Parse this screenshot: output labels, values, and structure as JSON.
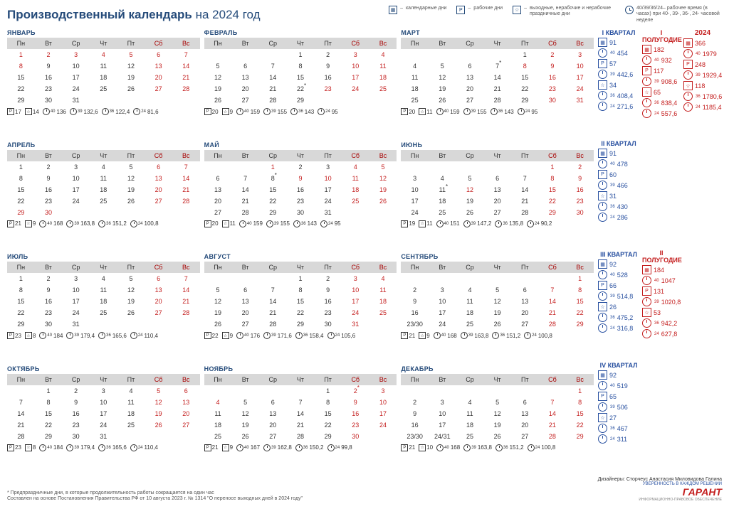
{
  "title": "Производственный календарь",
  "yearText": "на 2024 год",
  "legend": {
    "cal": "календарные дни",
    "work": "рабочие дни",
    "hol": "выходные, нерабочие и нерабочие праздничные дни",
    "hours": "рабочее время (в часах) при 40-, 39-, 36-, 24- часовой неделе",
    "hoursPrefix": "40/39/36/24–"
  },
  "dow": [
    "Пн",
    "Вт",
    "Ср",
    "Чт",
    "Пт",
    "Сб",
    "Вс"
  ],
  "months": [
    {
      "name": "ЯНВАРЬ",
      "start": 0,
      "days": 31,
      "hol": [
        1,
        2,
        3,
        4,
        5,
        6,
        7,
        8
      ],
      "pre": [],
      "stats": {
        "p": 17,
        "s": 14,
        "h40": 136,
        "h39": "132,6",
        "h36": "122,4",
        "h24": "81,6"
      }
    },
    {
      "name": "ФЕВРАЛЬ",
      "start": 3,
      "days": 29,
      "hol": [
        23
      ],
      "pre": [
        22
      ],
      "stats": {
        "p": 20,
        "s": 9,
        "h40": 159,
        "h39": 155,
        "h36": 143,
        "h24": 95
      }
    },
    {
      "name": "МАРТ",
      "start": 4,
      "days": 31,
      "hol": [
        8
      ],
      "pre": [
        7
      ],
      "stats": {
        "p": 20,
        "s": 11,
        "h40": 159,
        "h39": 155,
        "h36": 143,
        "h24": 95
      }
    },
    {
      "name": "АПРЕЛЬ",
      "start": 0,
      "days": 30,
      "hol": [
        29,
        30
      ],
      "pre": [],
      "stats": {
        "p": 21,
        "s": 9,
        "h40": 168,
        "h39": "163,8",
        "h36": "151,2",
        "h24": "100,8"
      }
    },
    {
      "name": "МАЙ",
      "start": 2,
      "days": 31,
      "hol": [
        1,
        9,
        10
      ],
      "pre": [
        8
      ],
      "stats": {
        "p": 20,
        "s": 11,
        "h40": 159,
        "h39": 155,
        "h36": 143,
        "h24": 95
      }
    },
    {
      "name": "ИЮНЬ",
      "start": 5,
      "days": 30,
      "hol": [
        12
      ],
      "pre": [
        11
      ],
      "stats": {
        "p": 19,
        "s": 11,
        "h40": 151,
        "h39": "147,2",
        "h36": "135,8",
        "h24": "90,2"
      }
    },
    {
      "name": "ИЮЛЬ",
      "start": 0,
      "days": 31,
      "hol": [],
      "pre": [],
      "stats": {
        "p": 23,
        "s": 8,
        "h40": 184,
        "h39": "179,4",
        "h36": "165,6",
        "h24": "110,4"
      }
    },
    {
      "name": "АВГУСТ",
      "start": 3,
      "days": 31,
      "hol": [],
      "pre": [],
      "stats": {
        "p": 22,
        "s": 9,
        "h40": 176,
        "h39": "171,6",
        "h36": "158,4",
        "h24": "105,6"
      }
    },
    {
      "name": "СЕНТЯБРЬ",
      "start": 6,
      "days": 30,
      "hol": [],
      "pre": [],
      "stats": {
        "p": 21,
        "s": 9,
        "h40": 168,
        "h39": "163,8",
        "h36": "151,2",
        "h24": "100,8"
      }
    },
    {
      "name": "ОКТЯБРЬ",
      "start": 1,
      "days": 31,
      "hol": [],
      "pre": [],
      "stats": {
        "p": 23,
        "s": 8,
        "h40": 184,
        "h39": "179,4",
        "h36": "165,6",
        "h24": "110,4"
      }
    },
    {
      "name": "НОЯБРЬ",
      "start": 4,
      "days": 30,
      "hol": [
        4
      ],
      "pre": [
        2
      ],
      "stats": {
        "p": 21,
        "s": 9,
        "h40": 167,
        "h39": "162,8",
        "h36": "150,2",
        "h24": "99,8"
      }
    },
    {
      "name": "ДЕКАБРЬ",
      "start": 6,
      "days": 31,
      "hol": [
        30,
        31
      ],
      "pre": [],
      "stats": {
        "p": 21,
        "s": 10,
        "h40": 168,
        "h39": "163,8",
        "h36": "151,2",
        "h24": "100,8"
      }
    }
  ],
  "quarters": [
    {
      "name": "I КВАРТАЛ",
      "cal": 91,
      "p": 57,
      "s": 34,
      "h40": 454,
      "h39": "442,6",
      "h36": "408,4",
      "h24": "271,6"
    },
    {
      "name": "II КВАРТАЛ",
      "cal": 91,
      "p": 60,
      "s": 31,
      "h40": 478,
      "h39": 466,
      "h36": 430,
      "h24": 286
    },
    {
      "name": "III КВАРТАЛ",
      "cal": 92,
      "p": 66,
      "s": 26,
      "h40": 528,
      "h39": "514,8",
      "h36": "475,2",
      "h24": "316,8"
    },
    {
      "name": "IV КВАРТАЛ",
      "cal": 92,
      "p": 65,
      "s": 27,
      "h40": 519,
      "h39": 506,
      "h36": 467,
      "h24": 311
    }
  ],
  "halves": [
    {
      "name": "I ПОЛУГОДИЕ",
      "cal": 182,
      "p": 117,
      "s": 65,
      "h40": 932,
      "h39": "908,6",
      "h36": "838,4",
      "h24": "557,6"
    },
    {
      "name": "II ПОЛУГОДИЕ",
      "cal": 184,
      "p": 131,
      "s": 53,
      "h40": 1047,
      "h39": "1020,8",
      "h36": "942,2",
      "h24": "627,8"
    }
  ],
  "year": {
    "name": "2024",
    "cal": 366,
    "p": 248,
    "s": 118,
    "h40": 1979,
    "h39": "1929,4",
    "h36": "1780,6",
    "h24": "1185,4"
  },
  "footer": {
    "note": "* Предпраздничные дни, в которые продолжительность работы сокращается на один час",
    "basis": "Составлен на основе Постановления Правительства РФ от 10 августа 2023 г. № 1314 \"О переносе выходных дней в 2024 году\"",
    "designers": "Дизайнеры: Сторчеус Анастасия Миловидова Галина",
    "confidence": "УВЕРЕННОСТЬ В КАЖДОМ РЕШЕНИИ",
    "brand": "ГАРАНТ",
    "brandSub": "ИНФОРМАЦИОННО-ПРАВОВОЕ ОБЕСПЕЧЕНИЕ"
  }
}
